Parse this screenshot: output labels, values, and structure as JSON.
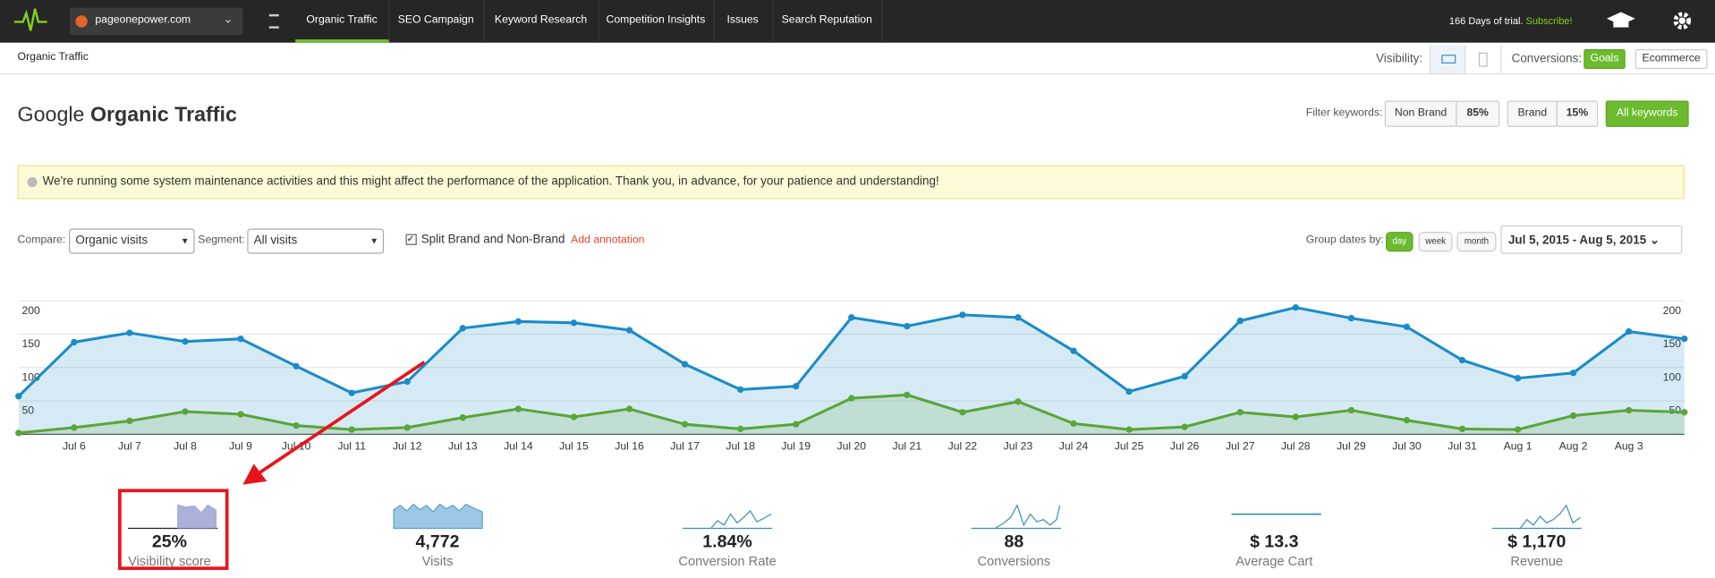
{
  "nav": {
    "site": "pageonepower.com",
    "tabs": [
      "Organic Traffic",
      "SEO Campaign",
      "Keyword Research",
      "Competition Insights",
      "Issues",
      "Search Reputation"
    ],
    "trial": "166 Days of trial.",
    "subscribe": "Subscribe!"
  },
  "subheader": {
    "title": "Organic Traffic",
    "visibility": "Visibility:",
    "conversions": "Conversions:",
    "goals": "Goals",
    "ecommerce": "Ecommerce"
  },
  "heading": {
    "prefix": "Google",
    "bold": "Organic Traffic"
  },
  "filter": {
    "label": "Filter keywords:",
    "non_brand": "Non Brand",
    "non_brand_pct": "85%",
    "brand": "Brand",
    "brand_pct": "15%",
    "all": "All keywords"
  },
  "notice": "We're running some system maintenance activities and this might affect the performance of the application. Thank you, in advance, for your patience and understanding!",
  "controls": {
    "compare_label": "Compare:",
    "compare": "Organic visits",
    "segment_label": "Segment:",
    "segment": "All visits",
    "split": "Split Brand and Non-Brand",
    "annotation": "Add annotation",
    "group_label": "Group dates by:",
    "group": [
      "day",
      "week",
      "month"
    ],
    "date_range": "Jul 5, 2015 - Aug 5, 2015"
  },
  "chart_data": {
    "type": "area",
    "categories": [
      null,
      "Jul 6",
      "Jul 7",
      "Jul 8",
      "Jul 9",
      "Jul 10",
      "Jul 11",
      "Jul 12",
      "Jul 13",
      "Jul 14",
      "Jul 15",
      "Jul 16",
      "Jul 17",
      "Jul 18",
      "Jul 19",
      "Jul 20",
      "Jul 21",
      "Jul 22",
      "Jul 23",
      "Jul 24",
      "Jul 25",
      "Jul 26",
      "Jul 27",
      "Jul 28",
      "Jul 29",
      "Jul 30",
      "Jul 31",
      "Aug 1",
      "Aug 2",
      "Aug 3",
      null
    ],
    "series": [
      {
        "color": "#1a8cc8",
        "values": [
          57,
          138,
          152,
          139,
          143,
          102,
          62,
          79,
          159,
          169,
          167,
          156,
          105,
          67,
          72,
          175,
          162,
          179,
          175,
          125,
          64,
          87,
          170,
          190,
          174,
          161,
          111,
          84,
          92,
          154,
          143
        ]
      },
      {
        "color": "#5aa53a",
        "values": [
          2,
          10,
          20,
          34,
          30,
          13,
          7,
          10,
          25,
          38,
          26,
          38,
          15,
          8,
          15,
          54,
          59,
          33,
          49,
          16,
          7,
          11,
          33,
          26,
          36,
          21,
          8,
          7,
          28,
          36,
          33
        ]
      }
    ],
    "ylim": [
      0,
      200
    ],
    "yticks": [
      50,
      100,
      150,
      200
    ],
    "grid": true
  },
  "metrics": [
    {
      "value": "25%",
      "label": "Visibility score"
    },
    {
      "value": "4,772",
      "label": "Visits"
    },
    {
      "value": "1.84%",
      "label": "Conversion Rate"
    },
    {
      "value": "88",
      "label": "Conversions"
    },
    {
      "value": "$ 13.3",
      "label": "Average Cart"
    },
    {
      "value": "$ 1,170",
      "label": "Revenue"
    }
  ]
}
